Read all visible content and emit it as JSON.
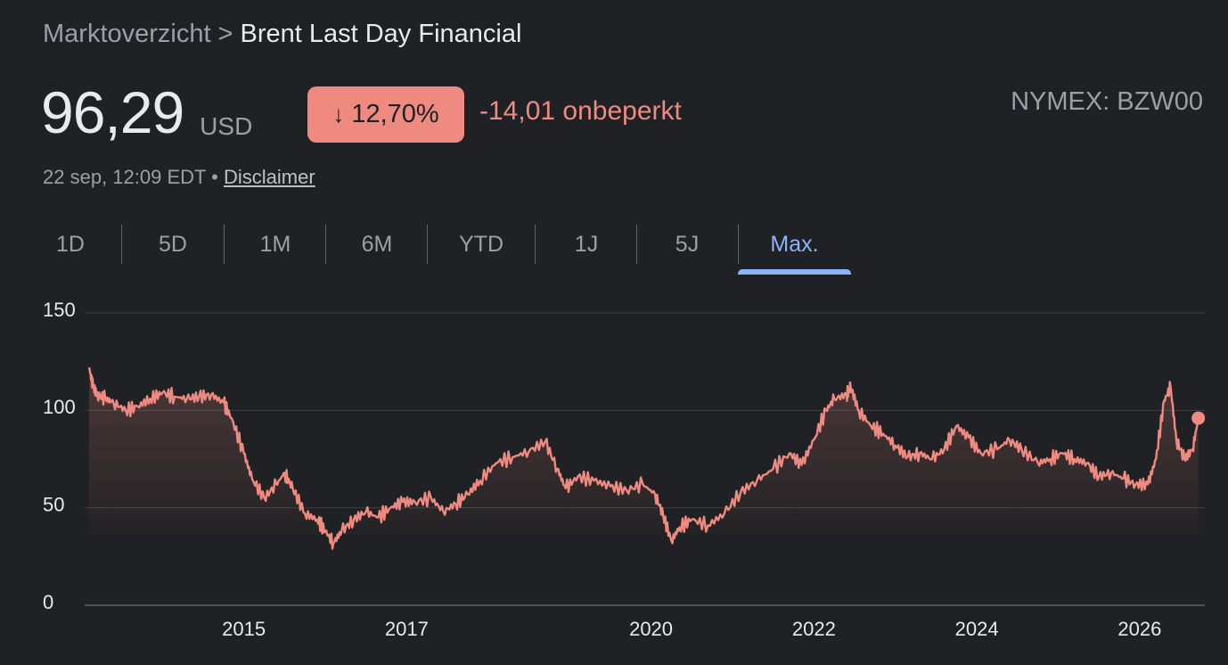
{
  "breadcrumb": {
    "parent": "Marktoverzicht",
    "separator": ">",
    "current": "Brent Last Day Financial"
  },
  "quote": {
    "price": "96,29",
    "currency": "USD",
    "change_pct": "12,70%",
    "change_abs": "-14,01 onbeperkt",
    "direction": "down",
    "ticker": "NYMEX: BZW00",
    "timestamp": "22 sep, 12:09 EDT",
    "meta_separator": "•",
    "disclaimer": "Disclaimer"
  },
  "tabs": [
    {
      "label": "1D",
      "active": false
    },
    {
      "label": "5D",
      "active": false
    },
    {
      "label": "1M",
      "active": false
    },
    {
      "label": "6M",
      "active": false
    },
    {
      "label": "YTD",
      "active": false
    },
    {
      "label": "1J",
      "active": false
    },
    {
      "label": "5J",
      "active": false
    },
    {
      "label": "Max.",
      "active": true
    }
  ],
  "colors": {
    "background": "#202124",
    "line": "#ee8a80",
    "grid": "#3c4043",
    "axis_text": "#e8eaed",
    "active_tab": "#8ab4f8"
  },
  "icons": {
    "change_arrow": "arrow-down-icon"
  },
  "chart_data": {
    "type": "area",
    "title": "",
    "xlabel": "",
    "ylabel": "",
    "ylim": [
      0,
      150
    ],
    "xlim": [
      2013.1,
      2026.8
    ],
    "yticks": [
      150,
      100,
      50,
      0
    ],
    "xticks": [
      2015,
      2017,
      2020,
      2022,
      2024,
      2026
    ],
    "grid": true,
    "series": [
      {
        "x": [
          2013.1,
          2013.15,
          2013.2,
          2013.3,
          2013.4,
          2013.55,
          2013.7,
          2013.85,
          2014.0,
          2014.15,
          2014.3,
          2014.45,
          2014.6,
          2014.75,
          2014.85,
          2015.0,
          2015.1,
          2015.25,
          2015.4,
          2015.5,
          2015.6,
          2015.75,
          2015.9,
          2016.0,
          2016.1,
          2016.2,
          2016.35,
          2016.5,
          2016.65,
          2016.8,
          2016.95,
          2017.1,
          2017.3,
          2017.45,
          2017.6,
          2017.75,
          2017.9,
          2018.1,
          2018.3,
          2018.5,
          2018.7,
          2018.85,
          2018.95,
          2019.1,
          2019.3,
          2019.5,
          2019.7,
          2019.9,
          2020.05,
          2020.15,
          2020.25,
          2020.35,
          2020.5,
          2020.7,
          2020.9,
          2021.1,
          2021.3,
          2021.5,
          2021.7,
          2021.85,
          2022.0,
          2022.15,
          2022.25,
          2022.4,
          2022.45,
          2022.55,
          2022.7,
          2022.85,
          2023.0,
          2023.15,
          2023.3,
          2023.45,
          2023.6,
          2023.75,
          2023.9,
          2024.05,
          2024.25,
          2024.4,
          2024.55,
          2024.75,
          2024.9,
          2025.05,
          2025.2,
          2025.35,
          2025.5,
          2025.65,
          2025.8,
          2025.95,
          2026.1,
          2026.2,
          2026.3,
          2026.38,
          2026.45,
          2026.55,
          2026.65,
          2026.72
        ],
        "values": [
          122,
          112,
          108,
          106,
          104,
          100,
          102,
          106,
          109,
          107,
          106,
          107,
          108,
          104,
          96,
          78,
          65,
          55,
          62,
          68,
          60,
          47,
          44,
          38,
          32,
          38,
          44,
          48,
          45,
          50,
          53,
          53,
          55,
          48,
          52,
          57,
          64,
          73,
          76,
          79,
          84,
          70,
          60,
          66,
          64,
          61,
          59,
          62,
          57,
          46,
          33,
          40,
          44,
          41,
          47,
          58,
          64,
          70,
          78,
          72,
          85,
          100,
          106,
          108,
          112,
          100,
          92,
          88,
          82,
          76,
          78,
          75,
          80,
          92,
          86,
          78,
          80,
          85,
          80,
          73,
          75,
          78,
          75,
          73,
          66,
          68,
          65,
          62,
          62,
          75,
          105,
          112,
          85,
          75,
          80,
          96
        ]
      }
    ]
  }
}
